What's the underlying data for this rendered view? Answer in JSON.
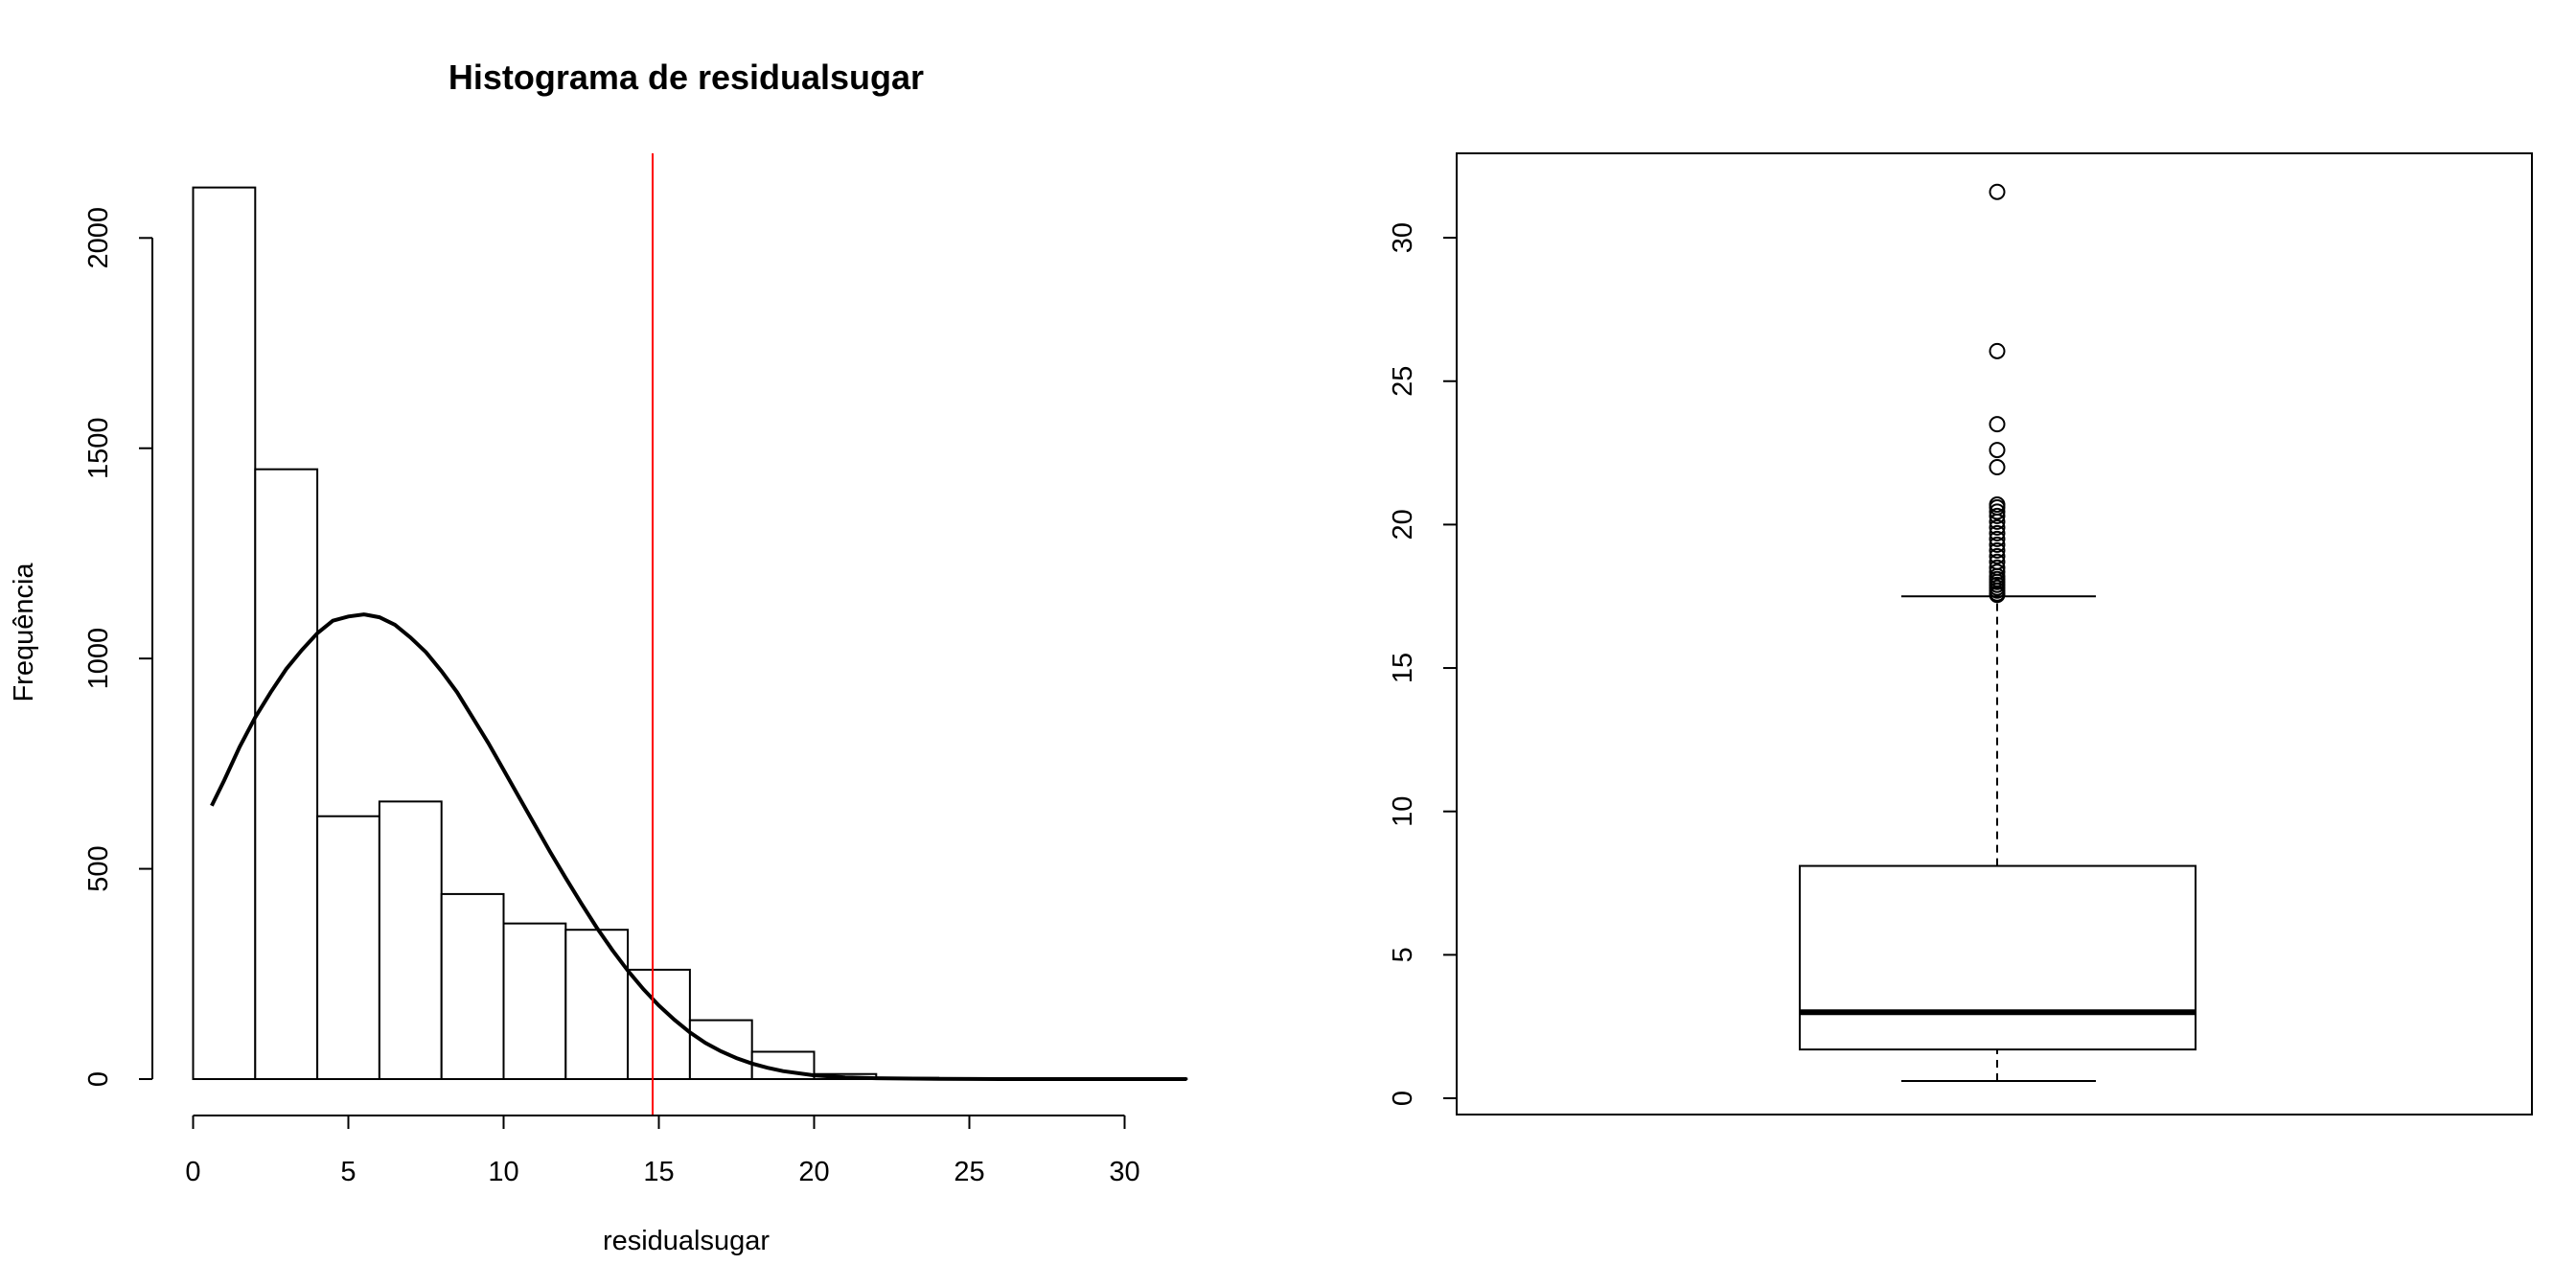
{
  "chart_data": [
    {
      "type": "bar",
      "title": "Histograma de  residualsugar",
      "xlabel": "residualsugar",
      "ylabel": "Frequência",
      "bin_edges": [
        0,
        2,
        4,
        6,
        8,
        10,
        12,
        14,
        16,
        18,
        20,
        22,
        24,
        26,
        28,
        30,
        32
      ],
      "values": [
        2120,
        1450,
        625,
        660,
        440,
        370,
        355,
        260,
        140,
        65,
        12,
        3,
        1,
        0,
        0,
        1
      ],
      "density_curve": {
        "x": [
          0.6,
          1.0,
          1.5,
          2.0,
          2.5,
          3.0,
          3.5,
          4.0,
          4.5,
          5.0,
          5.5,
          6.0,
          6.5,
          7.0,
          7.5,
          8.0,
          8.5,
          9.0,
          9.5,
          10.0,
          10.5,
          11.0,
          11.5,
          12.0,
          12.5,
          13.0,
          13.5,
          14.0,
          14.5,
          15.0,
          15.5,
          16.0,
          16.5,
          17.0,
          17.5,
          18.0,
          18.5,
          19.0,
          20.0,
          21.0,
          22.0,
          24.0,
          26.0,
          28.0,
          30.0,
          32.0
        ],
        "y": [
          650,
          710,
          790,
          860,
          920,
          975,
          1020,
          1060,
          1090,
          1100,
          1105,
          1098,
          1080,
          1050,
          1015,
          970,
          920,
          860,
          800,
          735,
          670,
          605,
          540,
          478,
          418,
          360,
          307,
          258,
          214,
          175,
          141,
          111,
          86,
          66,
          50,
          37,
          27,
          19,
          9,
          4,
          2,
          0.5,
          0.1,
          0,
          0,
          0
        ]
      },
      "vline": {
        "x": 14.8,
        "color": "#ff0000"
      },
      "xlim": [
        0,
        32
      ],
      "ylim": [
        0,
        2120
      ],
      "xticks": [
        "0",
        "5",
        "10",
        "15",
        "20",
        "25",
        "30"
      ],
      "yticks": [
        "0",
        "500",
        "1000",
        "1500",
        "2000"
      ],
      "grid": false
    },
    {
      "type": "boxplot",
      "whisker_low": 0.6,
      "q1": 1.7,
      "median": 3.0,
      "q3": 8.1,
      "whisker_high": 17.5,
      "outliers": [
        17.55,
        17.6,
        17.7,
        17.8,
        17.9,
        18.0,
        18.1,
        18.2,
        18.35,
        18.5,
        18.7,
        18.9,
        19.1,
        19.3,
        19.5,
        19.7,
        19.9,
        20.1,
        20.3,
        20.45,
        20.6,
        20.7,
        22.0,
        22.6,
        23.5,
        26.05,
        31.6
      ],
      "ylim": [
        0,
        32
      ],
      "yticks": [
        "0",
        "5",
        "10",
        "15",
        "20",
        "25",
        "30"
      ],
      "grid": false
    }
  ]
}
